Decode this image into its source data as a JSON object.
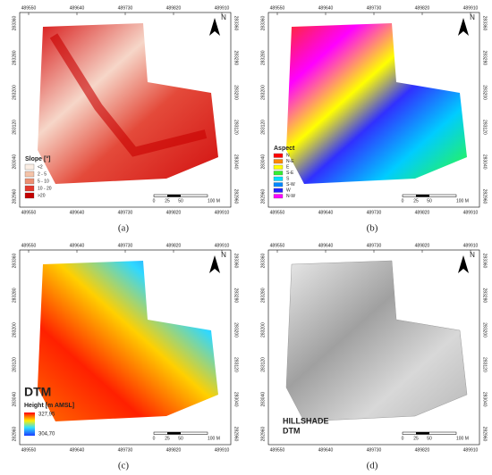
{
  "panels": [
    {
      "caption": "(a)",
      "north": "N",
      "x_labels": [
        "489550",
        "489640",
        "489730",
        "489820",
        "489910"
      ],
      "y_labels": [
        "283360",
        "283280",
        "283200",
        "283120",
        "283040",
        "282960"
      ],
      "scale": [
        "0",
        "25",
        "50",
        "100 M"
      ],
      "legend": {
        "title": "Slope [°]",
        "items": [
          "<2",
          "2 - 5",
          "5 - 10",
          "10 - 20",
          ">20"
        ]
      }
    },
    {
      "caption": "(b)",
      "north": "N",
      "x_labels": [
        "489550",
        "489640",
        "489730",
        "489820",
        "489910"
      ],
      "y_labels": [
        "283360",
        "283280",
        "283200",
        "283120",
        "283040",
        "282960"
      ],
      "scale": [
        "0",
        "25",
        "50",
        "100 M"
      ],
      "legend": {
        "title": "Aspect",
        "items": [
          "N",
          "N-E",
          "E",
          "S-E",
          "S",
          "S-W",
          "W",
          "N-W"
        ]
      }
    },
    {
      "caption": "(c)",
      "north": "N",
      "x_labels": [
        "489550",
        "489640",
        "489730",
        "489820",
        "489910"
      ],
      "y_labels": [
        "283360",
        "283280",
        "283200",
        "283120",
        "283040",
        "282960"
      ],
      "scale": [
        "0",
        "25",
        "50",
        "100 M"
      ],
      "legend": {
        "title": "DTM",
        "subtitle": "Height [m AMSL]",
        "max": "327,95",
        "min": "304,70"
      }
    },
    {
      "caption": "(d)",
      "north": "N",
      "x_labels": [
        "489550",
        "489640",
        "489730",
        "489820",
        "489910"
      ],
      "y_labels": [
        "283360",
        "283280",
        "283200",
        "283120",
        "283040",
        "282960"
      ],
      "scale": [
        "0",
        "25",
        "50",
        "100 M"
      ],
      "legend": {
        "title": "HILLSHADE",
        "subtitle": "DTM"
      }
    }
  ]
}
